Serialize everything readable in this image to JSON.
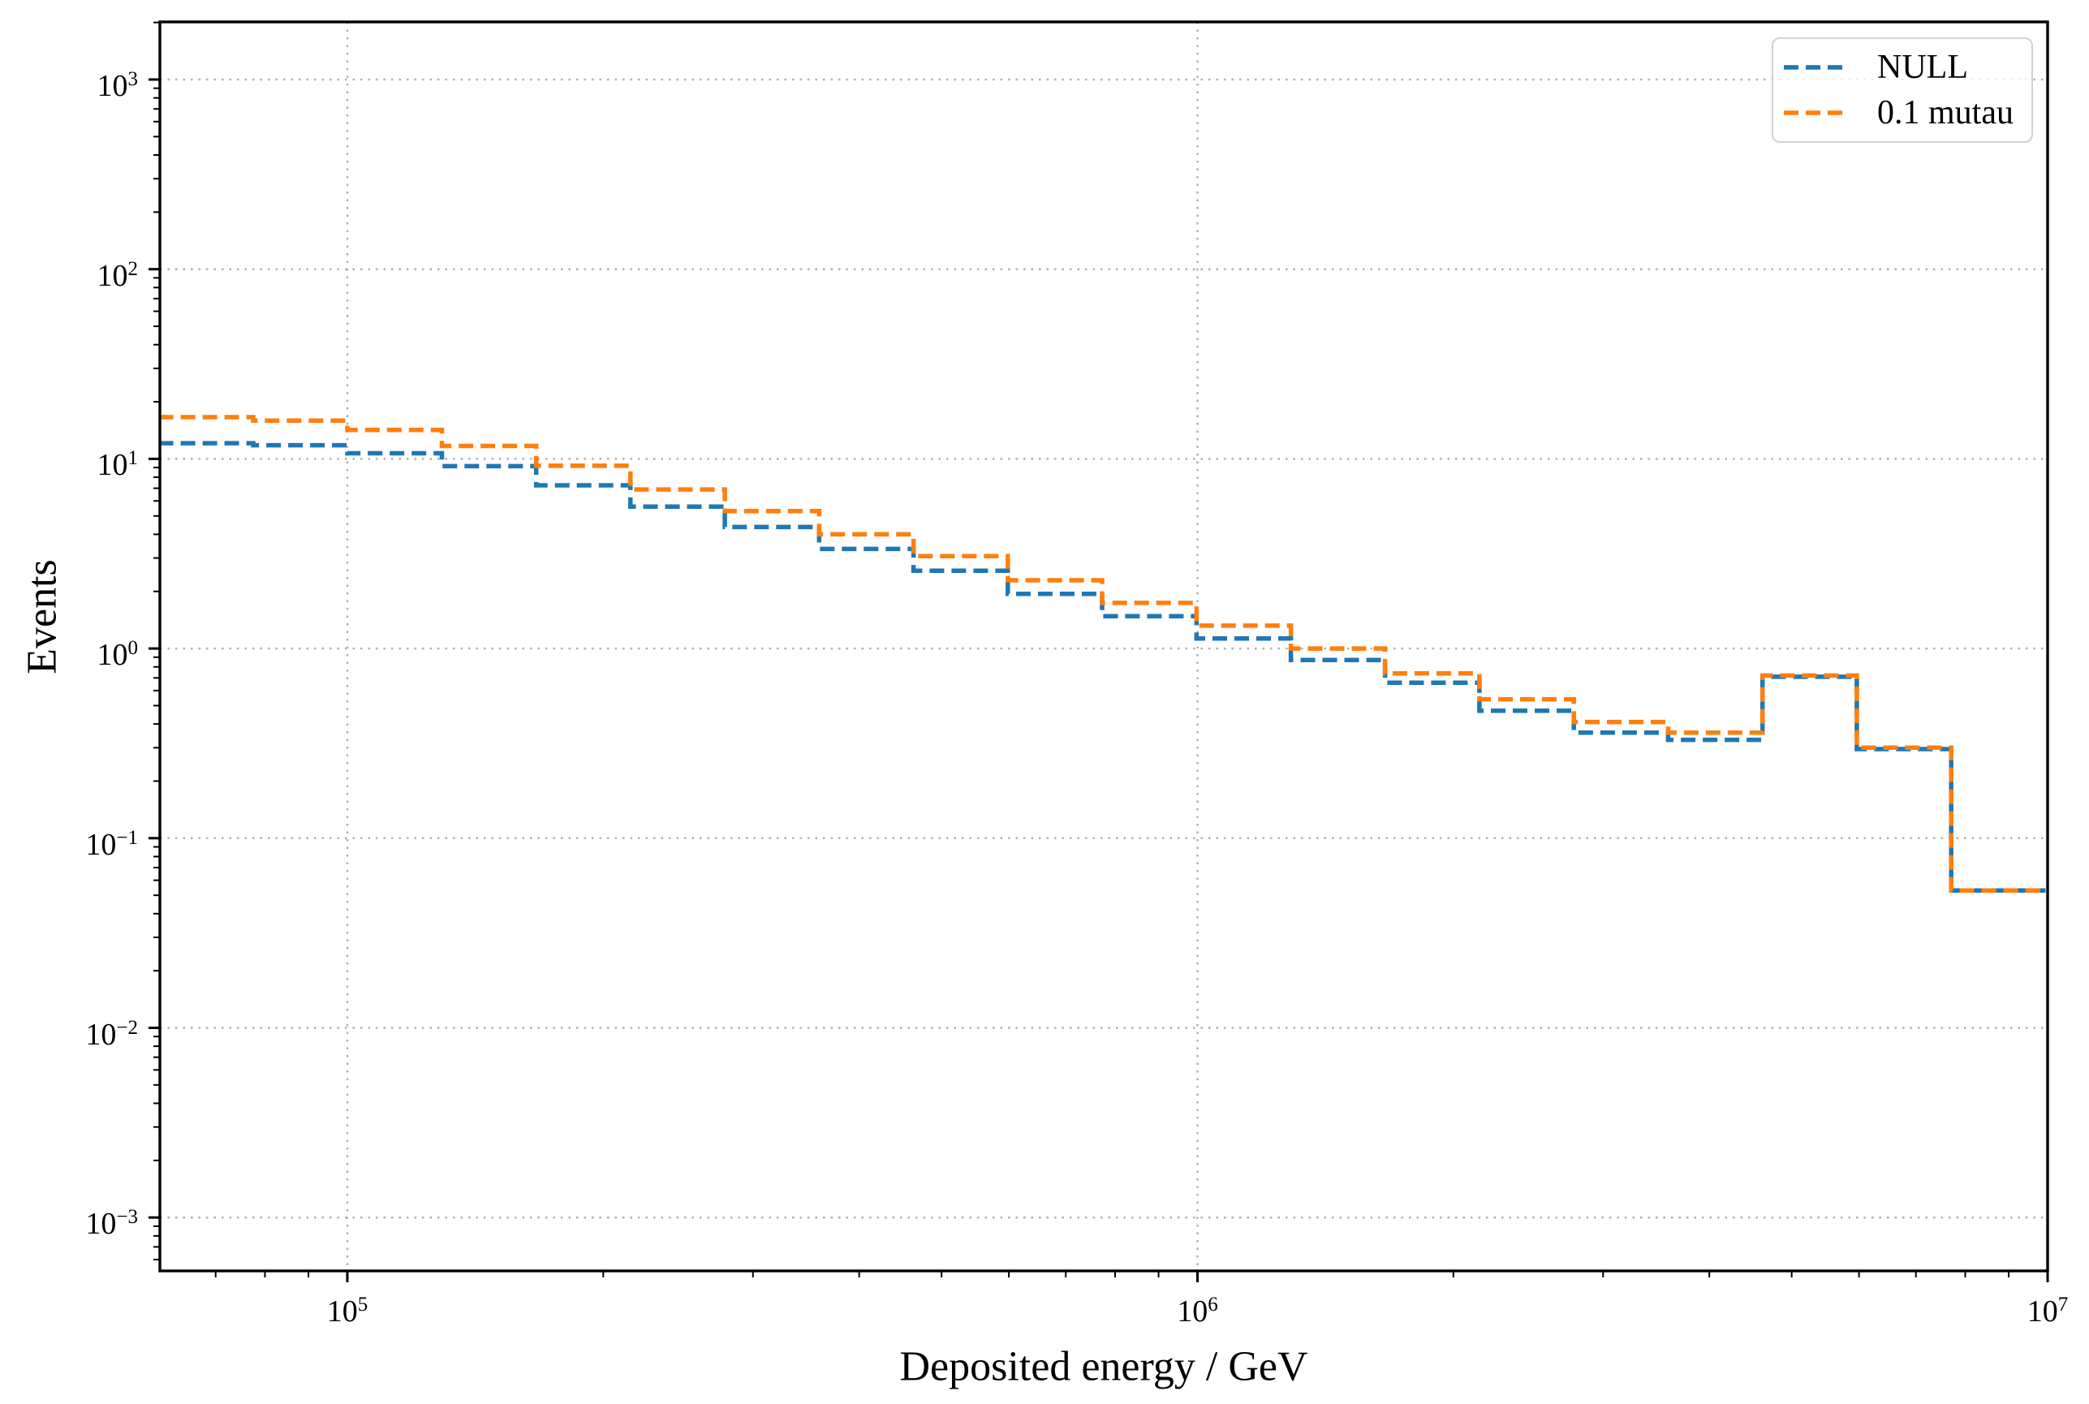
{
  "chart_data": {
    "type": "line",
    "subtype": "step-histogram",
    "title": "",
    "xlabel": "Deposited energy / GeV",
    "ylabel": "Events",
    "x_scale": "log",
    "y_scale": "log",
    "xlim": [
      60000,
      10000000
    ],
    "ylim": [
      0.00052,
      2000
    ],
    "grid": true,
    "grid_style": "dotted",
    "grid_color": "#b0b0b0",
    "legend_position": "upper right",
    "line_style": "dashed",
    "bin_edges": [
      60000,
      77500,
      100000,
      129200,
      166800,
      215300,
      278000,
      358900,
      463400,
      598300,
      772400,
      997300,
      1288000,
      1662000,
      2146000,
      2771000,
      3578000,
      4620000,
      5964000,
      7701000,
      9942000
    ],
    "series": [
      {
        "name": "NULL",
        "color": "#1f77b4",
        "values": [
          12.1,
          11.8,
          10.7,
          9.15,
          7.25,
          5.6,
          4.37,
          3.35,
          2.57,
          1.94,
          1.48,
          1.13,
          0.87,
          0.66,
          0.47,
          0.36,
          0.33,
          0.71,
          0.295,
          0.053
        ]
      },
      {
        "name": "0.1 mutau",
        "color": "#ff7f0e",
        "values": [
          16.6,
          15.9,
          14.2,
          11.7,
          9.2,
          6.9,
          5.3,
          4.0,
          3.07,
          2.29,
          1.74,
          1.32,
          1.0,
          0.74,
          0.54,
          0.41,
          0.36,
          0.72,
          0.3,
          0.053
        ]
      }
    ],
    "x_tick_base": "10",
    "x_tick_exponents": [
      "5",
      "6",
      "7"
    ],
    "y_tick_base": "10",
    "y_tick_exponents": [
      "3",
      "2",
      "1",
      "0",
      "−1",
      "−2",
      "−3"
    ]
  },
  "axes": {
    "xlabel": "Deposited energy / GeV",
    "ylabel": "Events"
  },
  "legend": {
    "items": [
      {
        "label": "NULL",
        "color": "#1f77b4"
      },
      {
        "label": "0.1 mutau",
        "color": "#ff7f0e"
      }
    ]
  }
}
